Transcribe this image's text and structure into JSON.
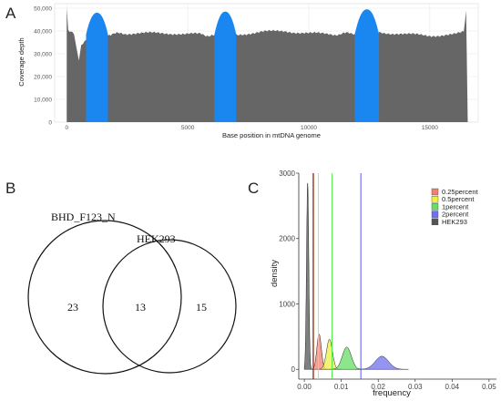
{
  "panels": {
    "a_label": "A",
    "b_label": "B",
    "c_label": "C"
  },
  "chart_data": [
    {
      "type": "area",
      "panel": "A",
      "xlabel": "Base position in mtDNA genome",
      "ylabel": "Coverage depth",
      "xlim": [
        -500,
        17000
      ],
      "ylim": [
        0,
        52000
      ],
      "x_ticks": [
        0,
        5000,
        10000,
        15000
      ],
      "y_ticks": [
        0,
        10000,
        20000,
        30000,
        40000,
        50000
      ],
      "x_tick_labels": [
        "0",
        "5000",
        "10000",
        "15000"
      ],
      "y_tick_labels": [
        "0",
        "10,000",
        "20,000",
        "30,000",
        "40,000",
        "50,000"
      ],
      "grid": true,
      "base_color": "#666666",
      "highlight_color": "#1a86f0",
      "coverage_profile": [
        {
          "x": 0,
          "y": 50000
        },
        {
          "x": 60,
          "y": 40000
        },
        {
          "x": 300,
          "y": 38500
        },
        {
          "x": 500,
          "y": 27000
        },
        {
          "x": 600,
          "y": 34000
        },
        {
          "x": 800,
          "y": 36500
        },
        {
          "x": 900,
          "y": 38000
        },
        {
          "x": 1700,
          "y": 38500
        },
        {
          "x": 2500,
          "y": 39000
        },
        {
          "x": 3500,
          "y": 39000
        },
        {
          "x": 4500,
          "y": 39000
        },
        {
          "x": 5500,
          "y": 38500
        },
        {
          "x": 6000,
          "y": 38000
        },
        {
          "x": 7000,
          "y": 38500
        },
        {
          "x": 8000,
          "y": 39500
        },
        {
          "x": 9000,
          "y": 40000
        },
        {
          "x": 10000,
          "y": 39000
        },
        {
          "x": 11000,
          "y": 38500
        },
        {
          "x": 11800,
          "y": 39000
        },
        {
          "x": 13000,
          "y": 39500
        },
        {
          "x": 14000,
          "y": 38500
        },
        {
          "x": 15000,
          "y": 38000
        },
        {
          "x": 16000,
          "y": 38500
        },
        {
          "x": 16400,
          "y": 39500
        },
        {
          "x": 16500,
          "y": 49000
        },
        {
          "x": 16569,
          "y": 0
        }
      ],
      "highlight_regions": [
        {
          "start": 800,
          "end": 1700,
          "peak": 48000
        },
        {
          "start": 6100,
          "end": 7000,
          "peak": 48500
        },
        {
          "start": 11900,
          "end": 12900,
          "peak": 49500
        }
      ]
    },
    {
      "type": "venn",
      "panel": "B",
      "sets": [
        {
          "name": "BHD_F123_N",
          "only_count": "23",
          "only_color": "#e02020"
        },
        {
          "name": "HEK293",
          "only_count": "15",
          "only_color": "#111111"
        }
      ],
      "intersection": "13"
    },
    {
      "type": "area",
      "panel": "C",
      "xlabel": "frequency",
      "ylabel": "density",
      "xlim": [
        -0.0015,
        0.052
      ],
      "ylim": [
        -150,
        3000
      ],
      "x_ticks": [
        0.0,
        0.01,
        0.02,
        0.03,
        0.04,
        0.05
      ],
      "x_tick_labels": [
        "0.00",
        "0.01",
        "0.02",
        "0.03",
        "0.04",
        "0.05"
      ],
      "y_ticks": [
        0,
        1000,
        2000,
        3000
      ],
      "y_tick_labels": [
        "0",
        "1000",
        "2000",
        "3000"
      ],
      "grid": false,
      "legend_position": "top-right",
      "series": [
        {
          "name": "0.25percent",
          "color": "#f08070",
          "mean": 0.004,
          "sd": 0.0006,
          "peak": 540,
          "vline": 0.0025,
          "vline_color": "#f04020"
        },
        {
          "name": "0.5percent",
          "color": "#eeee44",
          "mean": 0.0068,
          "sd": 0.0008,
          "peak": 460,
          "vline": 0.0038,
          "vline_color": "#e6e600"
        },
        {
          "name": "1percent",
          "color": "#66dd66",
          "mean": 0.0115,
          "sd": 0.0012,
          "peak": 340,
          "vline": 0.0075,
          "vline_color": "#44ee44"
        },
        {
          "name": "2percent",
          "color": "#7070ee",
          "mean": 0.021,
          "sd": 0.0018,
          "peak": 200,
          "vline": 0.0153,
          "vline_color": "#4444ff"
        },
        {
          "name": "HEK293",
          "color": "#555555",
          "mean": 0.0009,
          "sd": 0.0003,
          "peak": 2850,
          "vline": 0.0024,
          "vline_color": "#2a2a2a"
        }
      ]
    }
  ]
}
